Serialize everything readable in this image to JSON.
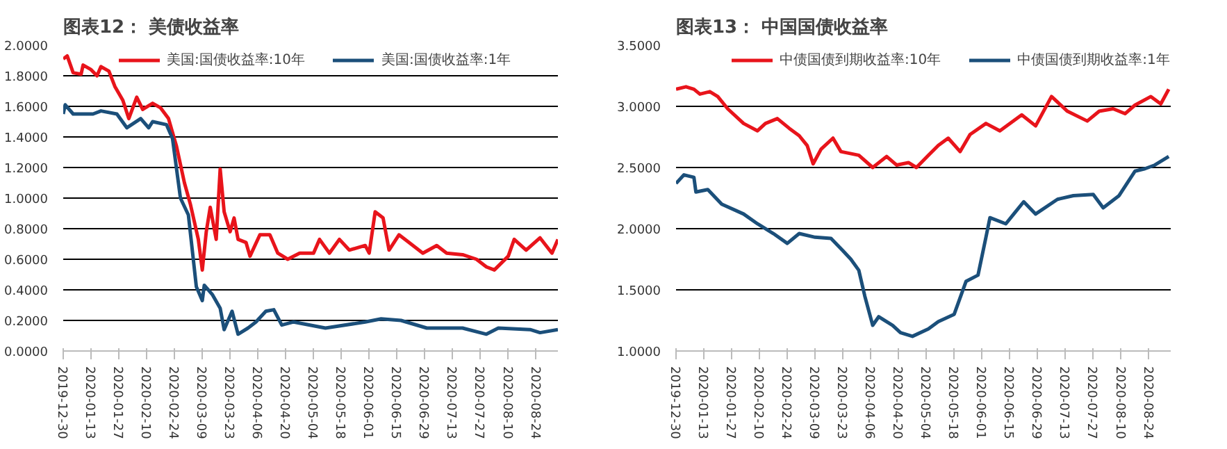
{
  "chart_data": [
    {
      "type": "line",
      "title": "图表12： 美债收益率",
      "legend": "top",
      "grid": "y",
      "xlim": [
        "2019-12-30",
        "2020-09-04"
      ],
      "xticks": [
        "2019-12-30",
        "2020-01-13",
        "2020-01-27",
        "2020-02-10",
        "2020-02-24",
        "2020-03-09",
        "2020-03-23",
        "2020-04-06",
        "2020-04-20",
        "2020-05-04",
        "2020-05-18",
        "2020-06-01",
        "2020-06-15",
        "2020-06-29",
        "2020-07-13",
        "2020-07-27",
        "2020-08-10",
        "2020-08-24"
      ],
      "ylim": [
        0,
        2
      ],
      "yticks": [
        {
          "value": 0,
          "label": "0.0000"
        },
        {
          "value": 0.2,
          "label": "0.2000"
        },
        {
          "value": 0.4,
          "label": "0.4000"
        },
        {
          "value": 0.6,
          "label": "0.6000"
        },
        {
          "value": 0.8,
          "label": "0.8000"
        },
        {
          "value": 1,
          "label": "1.0000"
        },
        {
          "value": 1.2,
          "label": "1.2000"
        },
        {
          "value": 1.4,
          "label": "1.4000"
        },
        {
          "value": 1.6,
          "label": "1.6000"
        },
        {
          "value": 1.8,
          "label": "1.8000"
        },
        {
          "value": 2,
          "label": "2.0000"
        }
      ],
      "series": [
        {
          "name": "美国:国债收益率:10年",
          "color": "#e8141b",
          "x": [
            "2019-12-30",
            "2020-01-01",
            "2020-01-04",
            "2020-01-08",
            "2020-01-09",
            "2020-01-13",
            "2020-01-16",
            "2020-01-18",
            "2020-01-22",
            "2020-01-25",
            "2020-01-29",
            "2020-02-01",
            "2020-02-05",
            "2020-02-08",
            "2020-02-13",
            "2020-02-17",
            "2020-02-21",
            "2020-02-25",
            "2020-02-29",
            "2020-03-03",
            "2020-03-07",
            "2020-03-09",
            "2020-03-11",
            "2020-03-13",
            "2020-03-16",
            "2020-03-18",
            "2020-03-20",
            "2020-03-23",
            "2020-03-25",
            "2020-03-27",
            "2020-03-31",
            "2020-04-02",
            "2020-04-07",
            "2020-04-12",
            "2020-04-16",
            "2020-04-21",
            "2020-04-27",
            "2020-05-04",
            "2020-05-07",
            "2020-05-12",
            "2020-05-17",
            "2020-05-22",
            "2020-05-30",
            "2020-06-01",
            "2020-06-04",
            "2020-06-08",
            "2020-06-11",
            "2020-06-16",
            "2020-06-21",
            "2020-06-28",
            "2020-07-05",
            "2020-07-10",
            "2020-07-18",
            "2020-07-25",
            "2020-07-30",
            "2020-08-03",
            "2020-08-10",
            "2020-08-13",
            "2020-08-19",
            "2020-08-26",
            "2020-09-01",
            "2020-09-04"
          ],
          "values": [
            1.91,
            1.93,
            1.82,
            1.81,
            1.87,
            1.84,
            1.8,
            1.86,
            1.83,
            1.73,
            1.64,
            1.52,
            1.66,
            1.58,
            1.62,
            1.59,
            1.52,
            1.34,
            1.1,
            0.96,
            0.73,
            0.53,
            0.78,
            0.94,
            0.73,
            1.19,
            0.91,
            0.78,
            0.87,
            0.73,
            0.71,
            0.62,
            0.76,
            0.76,
            0.64,
            0.6,
            0.64,
            0.64,
            0.73,
            0.64,
            0.73,
            0.66,
            0.69,
            0.64,
            0.91,
            0.87,
            0.66,
            0.76,
            0.71,
            0.64,
            0.69,
            0.64,
            0.63,
            0.6,
            0.55,
            0.53,
            0.62,
            0.73,
            0.66,
            0.74,
            0.64,
            0.73
          ]
        },
        {
          "name": "美国:国债收益率:1年",
          "color": "#1b4f7a",
          "x": [
            "2019-12-30",
            "2019-12-31",
            "2020-01-04",
            "2020-01-14",
            "2020-01-18",
            "2020-01-26",
            "2020-01-31",
            "2020-02-07",
            "2020-02-11",
            "2020-02-13",
            "2020-02-20",
            "2020-02-23",
            "2020-02-27",
            "2020-03-02",
            "2020-03-06",
            "2020-03-09",
            "2020-03-10",
            "2020-03-14",
            "2020-03-18",
            "2020-03-20",
            "2020-03-24",
            "2020-03-27",
            "2020-04-01",
            "2020-04-05",
            "2020-04-10",
            "2020-04-14",
            "2020-04-18",
            "2020-04-24",
            "2020-05-10",
            "2020-05-30",
            "2020-06-07",
            "2020-06-17",
            "2020-06-30",
            "2020-07-18",
            "2020-07-30",
            "2020-08-05",
            "2020-08-21",
            "2020-08-26",
            "2020-09-04"
          ],
          "values": [
            1.55,
            1.61,
            1.55,
            1.55,
            1.57,
            1.55,
            1.46,
            1.52,
            1.46,
            1.5,
            1.48,
            1.39,
            1.0,
            0.89,
            0.42,
            0.33,
            0.43,
            0.37,
            0.28,
            0.14,
            0.26,
            0.11,
            0.15,
            0.19,
            0.26,
            0.27,
            0.17,
            0.19,
            0.15,
            0.19,
            0.21,
            0.2,
            0.15,
            0.15,
            0.11,
            0.15,
            0.14,
            0.12,
            0.14
          ]
        }
      ]
    },
    {
      "type": "line",
      "title": "图表13： 中国国债收益率",
      "legend": "top",
      "grid": "y",
      "xlim": [
        "2019-12-30",
        "2020-09-04"
      ],
      "xticks": [
        "2019-12-30",
        "2020-01-13",
        "2020-01-27",
        "2020-02-10",
        "2020-02-24",
        "2020-03-09",
        "2020-03-23",
        "2020-04-06",
        "2020-04-20",
        "2020-05-04",
        "2020-05-18",
        "2020-06-01",
        "2020-06-15",
        "2020-06-29",
        "2020-07-13",
        "2020-07-27",
        "2020-08-10",
        "2020-08-24"
      ],
      "ylim": [
        1,
        3.5
      ],
      "yticks": [
        {
          "value": 1,
          "label": "1.0000"
        },
        {
          "value": 1.5,
          "label": "1.5000"
        },
        {
          "value": 2,
          "label": "2.0000"
        },
        {
          "value": 2.5,
          "label": "2.5000"
        },
        {
          "value": 3,
          "label": "3.0000"
        },
        {
          "value": 3.5,
          "label": "3.5000"
        }
      ],
      "series": [
        {
          "name": "中债国债到期收益率:10年",
          "color": "#e8141b",
          "x": [
            "2019-12-30",
            "2020-01-04",
            "2020-01-08",
            "2020-01-11",
            "2020-01-16",
            "2020-01-20",
            "2020-01-25",
            "2020-02-02",
            "2020-02-09",
            "2020-02-13",
            "2020-02-19",
            "2020-02-25",
            "2020-03-01",
            "2020-03-05",
            "2020-03-08",
            "2020-03-12",
            "2020-03-18",
            "2020-03-22",
            "2020-03-31",
            "2020-04-07",
            "2020-04-14",
            "2020-04-19",
            "2020-04-25",
            "2020-04-29",
            "2020-05-05",
            "2020-05-10",
            "2020-05-15",
            "2020-05-21",
            "2020-05-26",
            "2020-06-03",
            "2020-06-10",
            "2020-06-21",
            "2020-06-28",
            "2020-07-06",
            "2020-07-14",
            "2020-07-24",
            "2020-07-30",
            "2020-08-06",
            "2020-08-12",
            "2020-08-17",
            "2020-08-25",
            "2020-08-30",
            "2020-09-03"
          ],
          "values": [
            3.14,
            3.16,
            3.14,
            3.1,
            3.12,
            3.08,
            2.98,
            2.86,
            2.8,
            2.86,
            2.9,
            2.82,
            2.76,
            2.68,
            2.53,
            2.65,
            2.74,
            2.63,
            2.6,
            2.5,
            2.59,
            2.52,
            2.54,
            2.5,
            2.6,
            2.68,
            2.74,
            2.63,
            2.77,
            2.86,
            2.8,
            2.93,
            2.84,
            3.08,
            2.96,
            2.88,
            2.96,
            2.98,
            2.94,
            3.01,
            3.08,
            3.02,
            3.14
          ]
        },
        {
          "name": "中债国债到期收益率:1年",
          "color": "#1b4f7a",
          "x": [
            "2019-12-30",
            "2020-01-03",
            "2020-01-08",
            "2020-01-09",
            "2020-01-15",
            "2020-01-22",
            "2020-02-02",
            "2020-02-09",
            "2020-02-17",
            "2020-02-24",
            "2020-03-01",
            "2020-03-09",
            "2020-03-17",
            "2020-03-23",
            "2020-03-27",
            "2020-03-31",
            "2020-04-03",
            "2020-04-07",
            "2020-04-10",
            "2020-04-17",
            "2020-04-21",
            "2020-04-27",
            "2020-05-05",
            "2020-05-10",
            "2020-05-18",
            "2020-05-24",
            "2020-05-30",
            "2020-06-03",
            "2020-06-05",
            "2020-06-13",
            "2020-06-17",
            "2020-06-22",
            "2020-06-28",
            "2020-07-09",
            "2020-07-17",
            "2020-07-27",
            "2020-08-01",
            "2020-08-09",
            "2020-08-17",
            "2020-08-22",
            "2020-08-27",
            "2020-09-03"
          ],
          "values": [
            2.37,
            2.44,
            2.42,
            2.3,
            2.32,
            2.2,
            2.12,
            2.04,
            1.96,
            1.88,
            1.96,
            1.93,
            1.92,
            1.82,
            1.75,
            1.66,
            1.45,
            1.21,
            1.28,
            1.21,
            1.15,
            1.12,
            1.18,
            1.24,
            1.3,
            1.57,
            1.62,
            1.93,
            2.09,
            2.04,
            2.12,
            2.22,
            2.12,
            2.24,
            2.27,
            2.28,
            2.17,
            2.27,
            2.47,
            2.49,
            2.52,
            2.59
          ]
        }
      ]
    }
  ]
}
